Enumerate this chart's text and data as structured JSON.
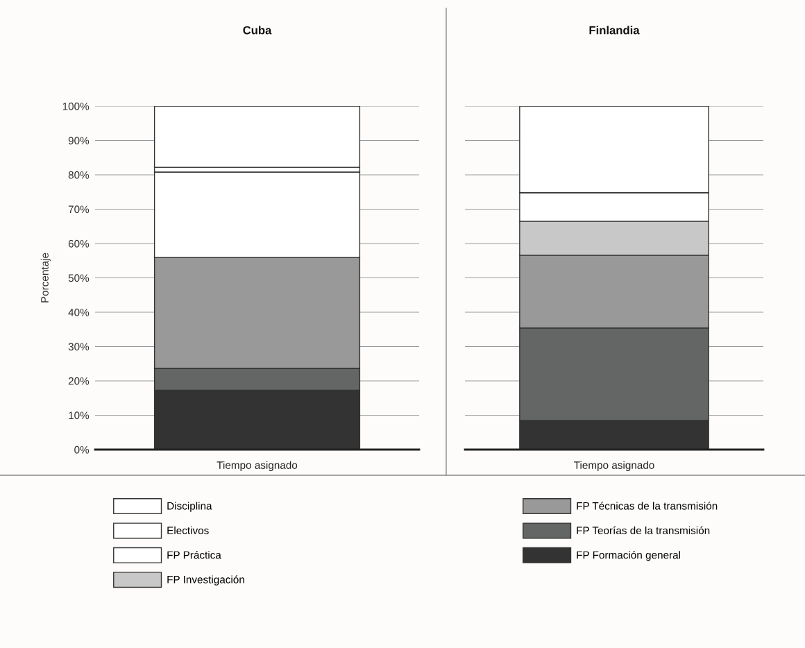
{
  "chart_data": [
    {
      "type": "bar",
      "title": "Cuba",
      "ylabel": "Porcentaje",
      "categories": [
        "Tiempo asignado"
      ],
      "stacked": true,
      "grid": "y",
      "legend": "bottom",
      "ylim": [
        0,
        100
      ],
      "yticks": [
        {
          "value": 0,
          "label": "0%"
        },
        {
          "value": 10,
          "label": "10%"
        },
        {
          "value": 20,
          "label": "20%"
        },
        {
          "value": 30,
          "label": "30%"
        },
        {
          "value": 40,
          "label": "40%"
        },
        {
          "value": 50,
          "label": "50%"
        },
        {
          "value": 60,
          "label": "60%"
        },
        {
          "value": 70,
          "label": "70%"
        },
        {
          "value": 80,
          "label": "80%"
        },
        {
          "value": 90,
          "label": "90%"
        },
        {
          "value": 100,
          "label": "100%"
        }
      ],
      "series": [
        {
          "name": "FP Formación general",
          "color": "#333333",
          "values": [
            17.3
          ]
        },
        {
          "name": "FP Teorías de la transmisión",
          "color": "#646665",
          "values": [
            6.4
          ]
        },
        {
          "name": "FP Técnicas de la transmisión",
          "color": "#999999",
          "values": [
            32.2
          ]
        },
        {
          "name": "FP Investigación",
          "color": "#c8c8c8",
          "values": [
            null
          ]
        },
        {
          "name": "FP Práctica",
          "color": "#ffffff",
          "values": [
            24.9
          ]
        },
        {
          "name": "Electivos",
          "color": "#ffffff",
          "values": [
            1.4
          ]
        },
        {
          "name": "Disciplina",
          "color": "#ffffff",
          "values": [
            17.8
          ]
        }
      ]
    },
    {
      "type": "bar",
      "title": "Finlandia",
      "categories": [
        "Tiempo asignado"
      ],
      "stacked": true,
      "grid": "y",
      "tick_labels": "x",
      "ylim": [
        0,
        100
      ],
      "yticks": [
        0,
        10,
        20,
        30,
        40,
        50,
        60,
        70,
        80,
        90,
        100
      ],
      "series": [
        {
          "color": "#333333",
          "values": [
            8.5
          ]
        },
        {
          "color": "#646665",
          "values": [
            26.9
          ]
        },
        {
          "color": "#999999",
          "values": [
            21.2
          ]
        },
        {
          "color": "#c8c8c8",
          "values": [
            9.9
          ]
        },
        {
          "color": "#ffffff",
          "values": [
            8.3
          ]
        },
        {
          "color": "#ffffff",
          "values": [
            null
          ]
        },
        {
          "color": "#ffffff",
          "values": [
            25.2
          ]
        }
      ]
    }
  ]
}
